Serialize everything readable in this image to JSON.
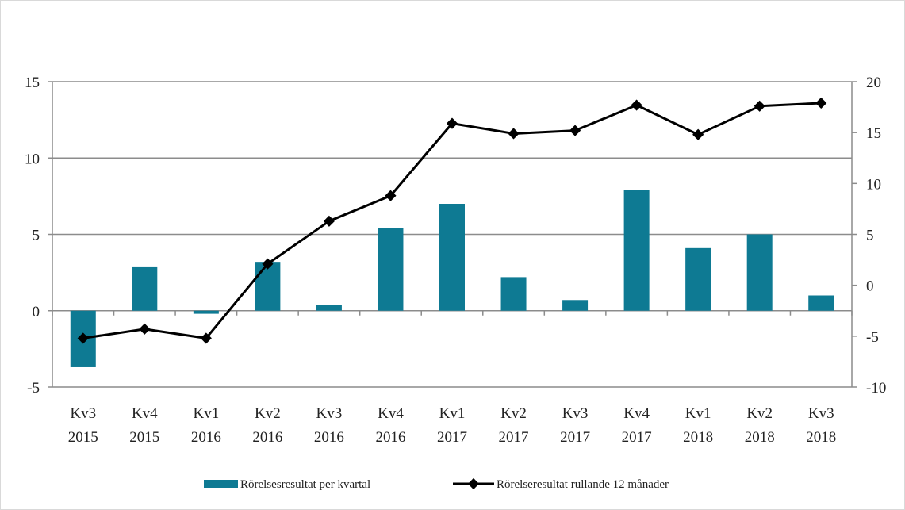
{
  "chart_data": {
    "type": "bar+line",
    "categories": [
      [
        "Kv3",
        "2015"
      ],
      [
        "Kv4",
        "2015"
      ],
      [
        "Kv1",
        "2016"
      ],
      [
        "Kv2",
        "2016"
      ],
      [
        "Kv3",
        "2016"
      ],
      [
        "Kv4",
        "2016"
      ],
      [
        "Kv1",
        "2017"
      ],
      [
        "Kv2",
        "2017"
      ],
      [
        "Kv3",
        "2017"
      ],
      [
        "Kv4",
        "2017"
      ],
      [
        "Kv1",
        "2018"
      ],
      [
        "Kv2",
        "2018"
      ],
      [
        "Kv3",
        "2018"
      ]
    ],
    "series": [
      {
        "name": "Rörelsesresultat per kvartal",
        "type": "bar",
        "axis": "left",
        "color": "#0e7a93",
        "values": [
          -3.7,
          2.9,
          -0.2,
          3.2,
          0.4,
          5.4,
          7.0,
          2.2,
          0.7,
          7.9,
          4.1,
          5.0,
          1.0
        ]
      },
      {
        "name": "Rörelseresultat rullande 12 månader",
        "type": "line",
        "axis": "right",
        "color": "#000000",
        "values": [
          -5.2,
          -4.3,
          -5.2,
          2.1,
          6.3,
          8.8,
          15.9,
          14.9,
          15.2,
          17.7,
          14.8,
          17.6,
          17.9
        ]
      }
    ],
    "y_left": {
      "min": -5,
      "max": 15,
      "ticks": [
        -5,
        0,
        5,
        10,
        15
      ]
    },
    "y_right": {
      "min": -10,
      "max": 20,
      "ticks": [
        -10,
        -5,
        0,
        5,
        10,
        15,
        20
      ]
    },
    "grid": "horizontal",
    "legend_position": "bottom"
  }
}
